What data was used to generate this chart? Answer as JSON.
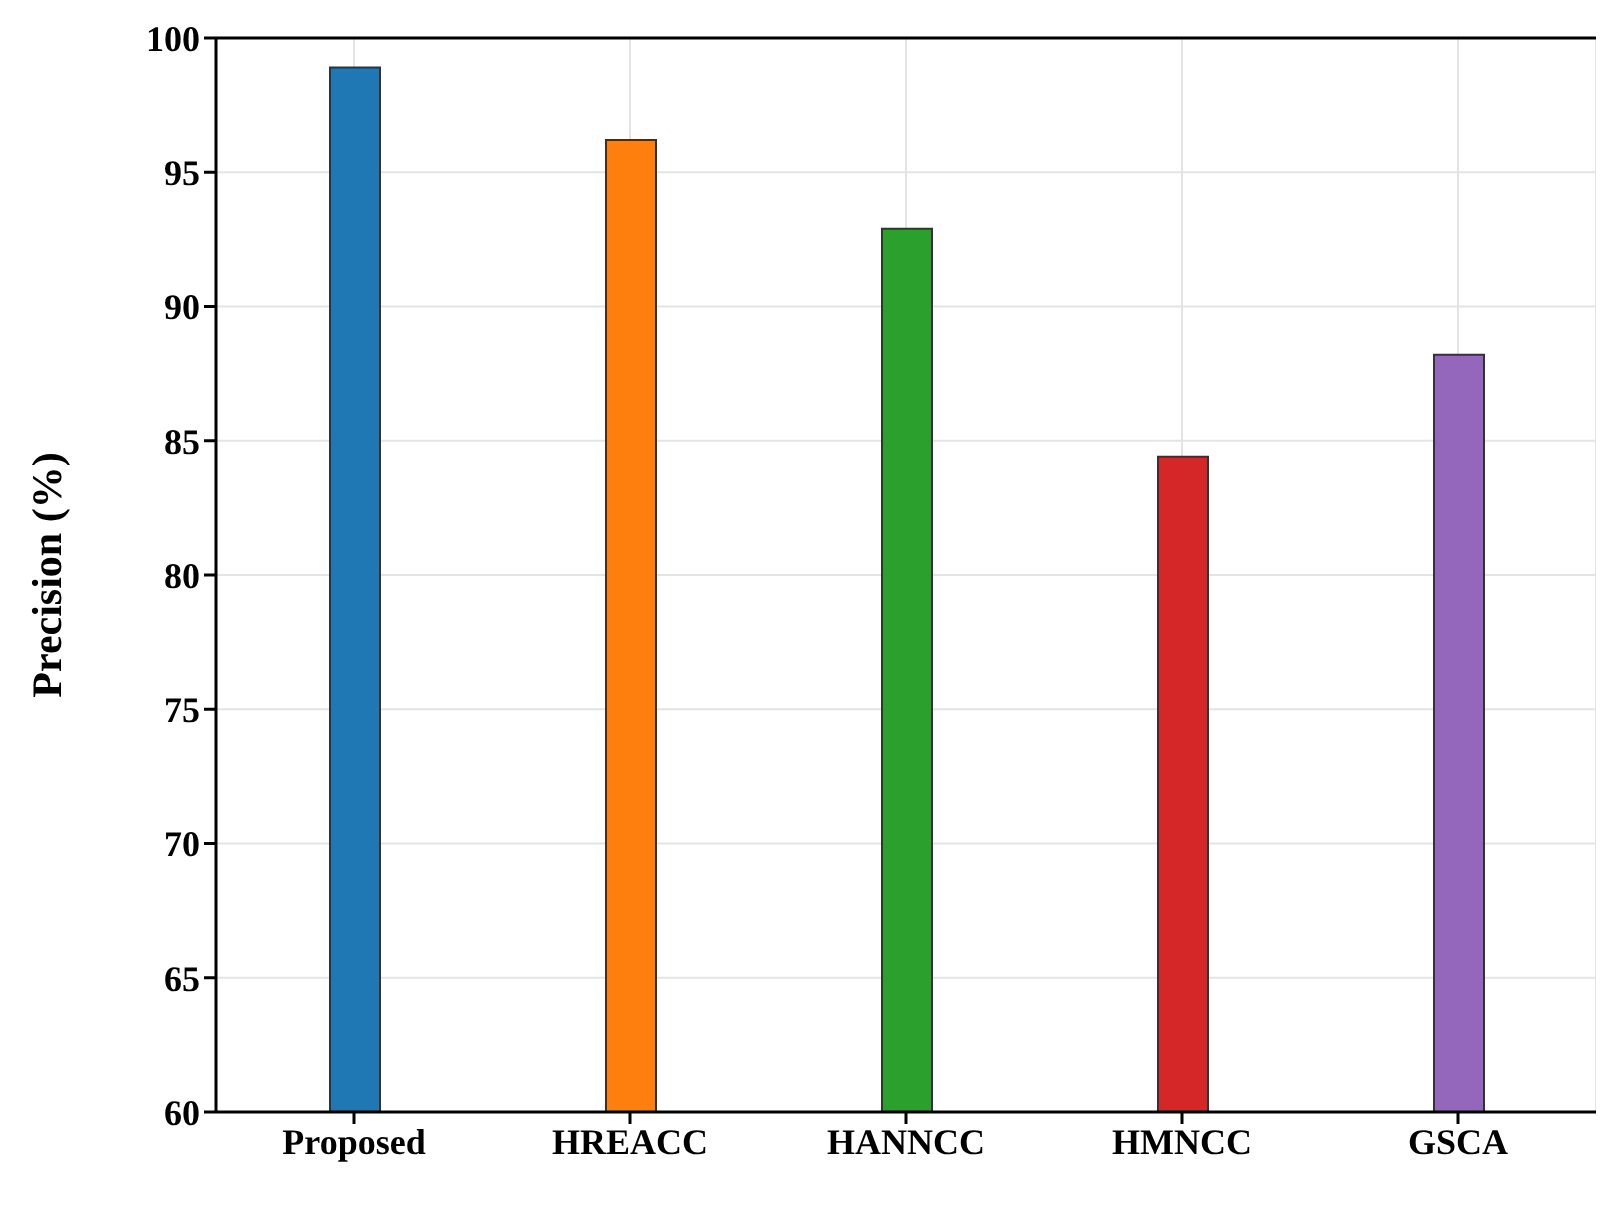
{
  "chart_data": {
    "type": "bar",
    "ylabel": "Precision (%)",
    "categories": [
      "Proposed",
      "HREACC",
      "HANNCC",
      "HMNCC",
      "GSCA"
    ],
    "values": [
      98.9,
      96.2,
      92.9,
      84.4,
      88.2
    ],
    "colors": [
      "#1f77b4",
      "#ff7f0e",
      "#2ca02c",
      "#d62728",
      "#9467bd"
    ],
    "ylim": [
      60,
      100
    ],
    "yticks": [
      60,
      65,
      70,
      75,
      80,
      85,
      90,
      95,
      100
    ],
    "grid": true
  }
}
